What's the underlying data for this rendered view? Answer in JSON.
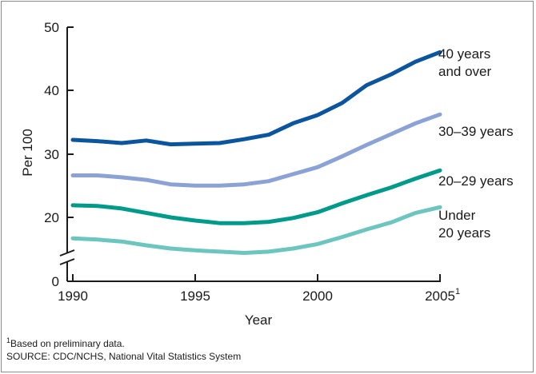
{
  "chart_data": {
    "type": "line",
    "xlabel": "Year",
    "ylabel": "Per 100",
    "xlim": [
      1990,
      2005
    ],
    "ylim": [
      0,
      50
    ],
    "axis_break": true,
    "x_ticks": [
      "1990",
      "1995",
      "2000",
      "2005"
    ],
    "x_last_tick_superscript": "1",
    "y_ticks": [
      "0",
      "20",
      "30",
      "40",
      "50"
    ],
    "grid": false,
    "x": [
      1990,
      1991,
      1992,
      1993,
      1994,
      1995,
      1996,
      1997,
      1998,
      1999,
      2000,
      2001,
      2002,
      2003,
      2004,
      2005
    ],
    "series": [
      {
        "name": "40 years and over",
        "label_lines": [
          "40 years",
          "and over"
        ],
        "color": "#0b559f",
        "values": [
          32.2,
          32.0,
          31.7,
          32.1,
          31.5,
          31.6,
          31.7,
          32.3,
          33.0,
          34.8,
          36.1,
          38.0,
          40.8,
          42.5,
          44.5,
          46.0
        ]
      },
      {
        "name": "30–39 years",
        "label_lines": [
          "30–39 years"
        ],
        "color": "#8ba2d6",
        "values": [
          26.6,
          26.6,
          26.3,
          25.9,
          25.2,
          25.0,
          25.0,
          25.2,
          25.7,
          26.8,
          27.9,
          29.6,
          31.4,
          33.1,
          34.8,
          36.2
        ]
      },
      {
        "name": "20–29 years",
        "label_lines": [
          "20–29 years"
        ],
        "color": "#009a8a",
        "values": [
          21.9,
          21.8,
          21.4,
          20.7,
          20.0,
          19.5,
          19.1,
          19.1,
          19.3,
          19.9,
          20.8,
          22.2,
          23.5,
          24.7,
          26.1,
          27.4
        ]
      },
      {
        "name": "Under 20 years",
        "label_lines": [
          "Under",
          "20 years"
        ],
        "color": "#6cc5bf",
        "values": [
          16.7,
          16.5,
          16.2,
          15.6,
          15.1,
          14.8,
          14.6,
          14.4,
          14.6,
          15.1,
          15.8,
          16.9,
          18.1,
          19.2,
          20.7,
          21.6
        ]
      }
    ]
  },
  "footnote": {
    "marker": "1",
    "text": "Based on preliminary data."
  },
  "source": "SOURCE: CDC/NCHS, National Vital Statistics System"
}
